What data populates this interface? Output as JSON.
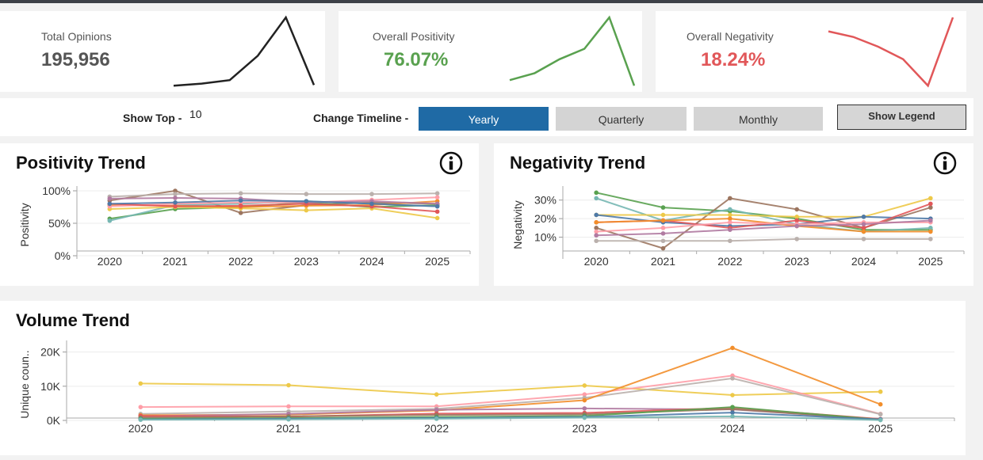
{
  "kpis": [
    {
      "label": "Total Opinions",
      "value": "195,956",
      "color": "#555555",
      "spark_color": "#222222",
      "spark": [
        2,
        5,
        10,
        45,
        100,
        3
      ]
    },
    {
      "label": "Overall Positivity",
      "value": "76.07%",
      "color": "#59a14f",
      "spark_color": "#59a14f",
      "spark": [
        10,
        20,
        40,
        55,
        100,
        2
      ]
    },
    {
      "label": "Overall Negativity",
      "value": "18.24%",
      "color": "#e15759",
      "spark_color": "#e15759",
      "spark": [
        80,
        72,
        58,
        40,
        2,
        100
      ]
    }
  ],
  "controls": {
    "show_top_label": "Show Top -",
    "show_top_value": "10",
    "timeline_label": "Change Timeline -",
    "timeline_options": [
      "Yearly",
      "Quarterly",
      "Monthly"
    ],
    "timeline_selected": "Yearly",
    "show_legend_label": "Show Legend"
  },
  "chart_data": [
    {
      "type": "line",
      "title": "Positivity Trend",
      "ylabel": "Positivity",
      "categories": [
        "2020",
        "2021",
        "2022",
        "2023",
        "2024",
        "2025"
      ],
      "ylim": [
        0,
        100
      ],
      "yticks": [
        0,
        50,
        100
      ],
      "ytick_labels": [
        "0%",
        "50%",
        "100%"
      ],
      "series": [
        {
          "color": "#9c755f",
          "values": [
            85,
            100,
            66,
            78,
            82,
            80
          ]
        },
        {
          "color": "#59a14f",
          "values": [
            57,
            72,
            75,
            82,
            75,
            78
          ]
        },
        {
          "color": "#76b7b2",
          "values": [
            54,
            78,
            80,
            84,
            80,
            76
          ]
        },
        {
          "color": "#bab0ac",
          "values": [
            91,
            95,
            96,
            95,
            95,
            96
          ]
        },
        {
          "color": "#edc948",
          "values": [
            72,
            75,
            73,
            70,
            73,
            58
          ]
        },
        {
          "color": "#f28e2b",
          "values": [
            78,
            77,
            75,
            77,
            78,
            84
          ]
        },
        {
          "color": "#ff9da7",
          "values": [
            76,
            80,
            82,
            82,
            86,
            90
          ]
        },
        {
          "color": "#b07aa1",
          "values": [
            88,
            89,
            88,
            82,
            84,
            80
          ]
        },
        {
          "color": "#e15759",
          "values": [
            80,
            76,
            77,
            80,
            76,
            68
          ]
        },
        {
          "color": "#4e79a7",
          "values": [
            80,
            82,
            85,
            84,
            80,
            76
          ]
        }
      ]
    },
    {
      "type": "line",
      "title": "Negativity Trend",
      "ylabel": "Negativity",
      "categories": [
        "2020",
        "2021",
        "2022",
        "2023",
        "2024",
        "2025"
      ],
      "ylim": [
        0,
        35
      ],
      "yticks": [
        10,
        20,
        30
      ],
      "ytick_labels": [
        "10%",
        "20%",
        "30%"
      ],
      "series": [
        {
          "color": "#59a14f",
          "values": [
            34,
            26,
            24,
            20,
            14,
            14
          ]
        },
        {
          "color": "#76b7b2",
          "values": [
            31,
            19,
            25,
            17,
            13,
            15
          ]
        },
        {
          "color": "#9c755f",
          "values": [
            15,
            4,
            31,
            25,
            15,
            26
          ]
        },
        {
          "color": "#edc948",
          "values": [
            22,
            22,
            22,
            21,
            21,
            31
          ]
        },
        {
          "color": "#4e79a7",
          "values": [
            22,
            18,
            16,
            17,
            21,
            20
          ]
        },
        {
          "color": "#e15759",
          "values": [
            18,
            19,
            15,
            19,
            15,
            28
          ]
        },
        {
          "color": "#f28e2b",
          "values": [
            18,
            19,
            20,
            16,
            13,
            13
          ]
        },
        {
          "color": "#ff9da7",
          "values": [
            13,
            15,
            18,
            17,
            18,
            18
          ]
        },
        {
          "color": "#b07aa1",
          "values": [
            11,
            12,
            14,
            16,
            17,
            19
          ]
        },
        {
          "color": "#bab0ac",
          "values": [
            8,
            8,
            8,
            9,
            9,
            9
          ]
        }
      ]
    },
    {
      "type": "line",
      "title": "Volume Trend",
      "ylabel": "Unique coun..",
      "categories": [
        "2020",
        "2021",
        "2022",
        "2023",
        "2024",
        "2025"
      ],
      "ylim": [
        0,
        22000
      ],
      "yticks": [
        0,
        10000,
        20000
      ],
      "ytick_labels": [
        "0K",
        "10K",
        "20K"
      ],
      "series": [
        {
          "color": "#edc948",
          "values": [
            10800,
            10300,
            7600,
            10200,
            7400,
            8400
          ]
        },
        {
          "color": "#ff9da7",
          "values": [
            3900,
            4100,
            4100,
            7600,
            13100,
            1900
          ]
        },
        {
          "color": "#bab0ac",
          "values": [
            1900,
            2600,
            3400,
            6600,
            12300,
            1800
          ]
        },
        {
          "color": "#f28e2b",
          "values": [
            1500,
            1700,
            2900,
            5900,
            21200,
            4700
          ]
        },
        {
          "color": "#b07aa1",
          "values": [
            1200,
            1900,
            3100,
            3500,
            3200,
            300
          ]
        },
        {
          "color": "#e15759",
          "values": [
            1300,
            1100,
            2000,
            2200,
            3700,
            400
          ]
        },
        {
          "color": "#9c755f",
          "values": [
            800,
            1200,
            1600,
            1800,
            3300,
            300
          ]
        },
        {
          "color": "#59a14f",
          "values": [
            500,
            700,
            1000,
            1300,
            3900,
            200
          ]
        },
        {
          "color": "#4e79a7",
          "values": [
            300,
            500,
            700,
            1000,
            2300,
            300
          ]
        },
        {
          "color": "#76b7b2",
          "values": [
            200,
            300,
            500,
            800,
            1200,
            100
          ]
        }
      ]
    }
  ],
  "icons": {
    "info": "info-icon"
  }
}
